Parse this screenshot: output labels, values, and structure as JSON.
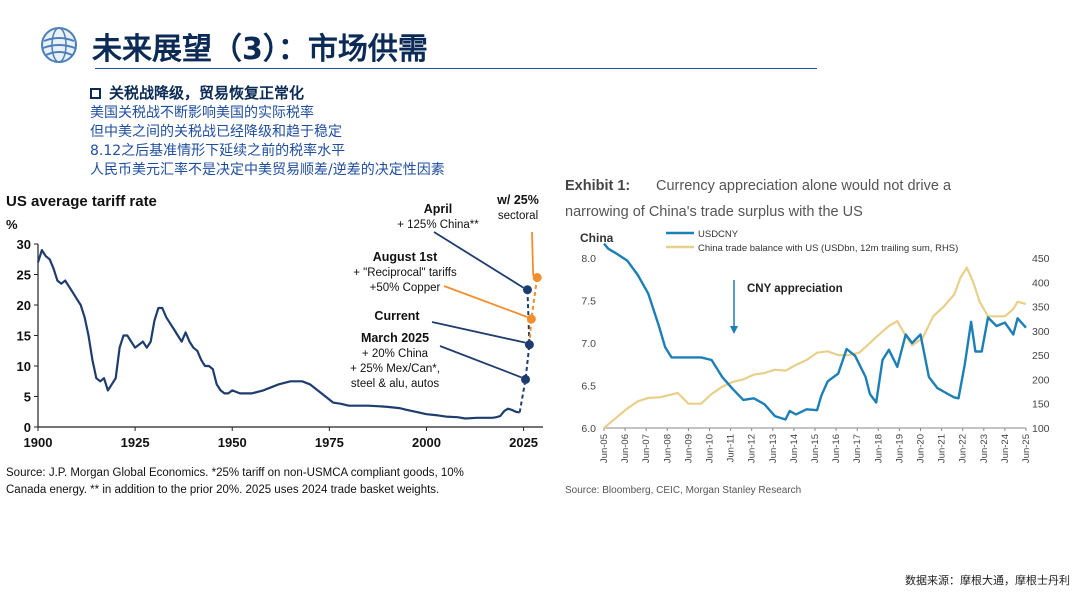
{
  "header": {
    "title": "未来展望（3）：市场供需",
    "bullet_heading": "关税战降级，贸易恢复正常化",
    "bullet_lines": [
      "美国关税战不断影响美国的实际税率",
      "但中美之间的关税战已经降级和趋于稳定",
      "8.12之后基准情形下延续之前的税率水平",
      "人民币美元汇率不是决定中美贸易顺差/逆差的决定性因素"
    ]
  },
  "footer": {
    "source": "数据来源：摩根大通，摩根士丹利"
  },
  "colors": {
    "navy": "#1e3d6e",
    "orange": "#f28e2b",
    "teal": "#1c7fb6",
    "tan": "#e8cf8a",
    "title": "#0b2a55"
  },
  "chart_data": [
    {
      "type": "line",
      "title": "US average tariff rate",
      "ylabel": "%",
      "xlim": [
        1900,
        2030
      ],
      "ylim": [
        0,
        30
      ],
      "x_ticks": [
        "1900",
        "1925",
        "1950",
        "1975",
        "2000",
        "2025"
      ],
      "y_ticks": [
        "0",
        "5",
        "10",
        "15",
        "20",
        "25",
        "30"
      ],
      "series": [
        {
          "color": "#1e3d6e",
          "x": [
            1900,
            1901,
            1902,
            1903,
            1904,
            1905,
            1906,
            1907,
            1908,
            1909,
            1910,
            1911,
            1912,
            1913,
            1914,
            1915,
            1916,
            1917,
            1918,
            1919,
            1920,
            1921,
            1922,
            1923,
            1924,
            1925,
            1926,
            1927,
            1928,
            1929,
            1930,
            1931,
            1932,
            1933,
            1934,
            1935,
            1936,
            1937,
            1938,
            1939,
            1940,
            1941,
            1942,
            1943,
            1944,
            1945,
            1946,
            1947,
            1948,
            1949,
            1950,
            1952,
            1955,
            1958,
            1960,
            1962,
            1965,
            1968,
            1970,
            1972,
            1974,
            1976,
            1978,
            1980,
            1982,
            1985,
            1988,
            1990,
            1993,
            1995,
            1998,
            2000,
            2003,
            2005,
            2008,
            2010,
            2013,
            2015,
            2017,
            2018,
            2019,
            2020,
            2021,
            2022,
            2023,
            2024
          ],
          "y": [
            27,
            29,
            28,
            27.5,
            26,
            24,
            23.5,
            24,
            23,
            22,
            21,
            20,
            18,
            15,
            11,
            8,
            7.5,
            8,
            6,
            7,
            8,
            13,
            15,
            15,
            14,
            13,
            13.5,
            14,
            13,
            14,
            17.5,
            19.5,
            19.5,
            18,
            17,
            16,
            15,
            14,
            15.5,
            14,
            13,
            12.5,
            11,
            10,
            10,
            9.5,
            7,
            6,
            5.5,
            5.5,
            6,
            5.5,
            5.5,
            6,
            6.5,
            7,
            7.5,
            7.5,
            7,
            6,
            5,
            4,
            3.8,
            3.5,
            3.5,
            3.5,
            3.4,
            3.3,
            3.1,
            2.8,
            2.4,
            2.1,
            1.9,
            1.7,
            1.6,
            1.4,
            1.5,
            1.5,
            1.5,
            1.6,
            1.8,
            2.6,
            3,
            2.8,
            2.5,
            2.4
          ]
        }
      ],
      "projections": [
        {
          "name": "March 2025",
          "lines": [
            "March 2025",
            "+ 20% China",
            "+ 25% Mex/Can*,",
            "steel & alu, autos"
          ],
          "x": 2025.5,
          "y": 7.8,
          "color": "#1e3d6e"
        },
        {
          "name": "Current",
          "lines": [
            "Current"
          ],
          "x": 2026.5,
          "y": 13.5,
          "color": "#1e3d6e"
        },
        {
          "name": "August 1st",
          "lines": [
            "August 1st",
            "+ \"Reciprocal\" tariffs",
            "+50% Copper"
          ],
          "x": 2027,
          "y": 17.7,
          "color": "#f28e2b"
        },
        {
          "name": "April",
          "lines": [
            "April",
            "+ 125% China**"
          ],
          "x": 2026,
          "y": 22.5,
          "color": "#1e3d6e"
        },
        {
          "name": "w/ 25% sectoral",
          "lines": [
            "w/ 25%",
            "sectoral"
          ],
          "x": 2028.5,
          "y": 24.5,
          "color": "#f28e2b"
        }
      ],
      "footnote": [
        "Source: J.P. Morgan Global Economics. *25% tariff on non-USMCA compliant goods, 10%",
        "Canada energy. ** in addition to the prior 20%. 2025 uses 2024 trade basket weights."
      ]
    },
    {
      "type": "line",
      "exhibit": "Exhibit 1:",
      "title_lines": [
        "Currency appreciation alone would not drive a",
        "narrowing of China's trade surplus with the US"
      ],
      "panel_label": "China",
      "annotation": "CNY appreciation",
      "ylim_left": [
        6.0,
        8.0
      ],
      "ylim_right": [
        100,
        450
      ],
      "y_ticks_left": [
        "6.0",
        "6.5",
        "7.0",
        "7.5",
        "8.0"
      ],
      "y_ticks_right": [
        "100",
        "150",
        "200",
        "250",
        "300",
        "350",
        "400",
        "450"
      ],
      "x_ticks": [
        "Jun-05",
        "Jun-06",
        "Jun-07",
        "Jun-08",
        "Jun-09",
        "Jun-10",
        "Jun-11",
        "Jun-12",
        "Jun-13",
        "Jun-14",
        "Jun-15",
        "Jun-16",
        "Jun-17",
        "Jun-18",
        "Jun-19",
        "Jun-20",
        "Jun-21",
        "Jun-22",
        "Jun-23",
        "Jun-24",
        "Jun-25"
      ],
      "series": [
        {
          "name": "USDCNY",
          "axis": "left",
          "color": "#1c7fb6",
          "x": [
            2005.4,
            2005.6,
            2006.0,
            2006.5,
            2007.0,
            2007.5,
            2008.0,
            2008.3,
            2008.6,
            2009.0,
            2009.5,
            2010.0,
            2010.5,
            2011.0,
            2011.5,
            2012.0,
            2012.5,
            2013.0,
            2013.5,
            2014.0,
            2014.2,
            2014.5,
            2015.0,
            2015.5,
            2015.7,
            2016.0,
            2016.5,
            2016.9,
            2017.3,
            2017.8,
            2018.0,
            2018.3,
            2018.6,
            2018.9,
            2019.3,
            2019.7,
            2020.0,
            2020.4,
            2020.8,
            2021.2,
            2021.7,
            2022.0,
            2022.2,
            2022.5,
            2022.8,
            2023.0,
            2023.3,
            2023.6,
            2024.0,
            2024.4,
            2024.8,
            2025.0,
            2025.4
          ],
          "y": [
            8.17,
            8.11,
            8.05,
            7.97,
            7.8,
            7.58,
            7.2,
            6.95,
            6.83,
            6.83,
            6.83,
            6.83,
            6.8,
            6.6,
            6.46,
            6.33,
            6.35,
            6.28,
            6.14,
            6.1,
            6.2,
            6.16,
            6.22,
            6.21,
            6.38,
            6.55,
            6.64,
            6.93,
            6.85,
            6.6,
            6.4,
            6.3,
            6.8,
            6.92,
            6.72,
            7.1,
            7.0,
            7.1,
            6.6,
            6.47,
            6.4,
            6.36,
            6.35,
            6.75,
            7.25,
            6.9,
            6.9,
            7.3,
            7.2,
            7.24,
            7.1,
            7.29,
            7.18
          ]
        },
        {
          "name": "China trade balance with US (USDbn, 12m trailing sum, RHS)",
          "axis": "right",
          "color": "#e8cf8a",
          "x": [
            2005.4,
            2006.0,
            2006.5,
            2007.0,
            2007.5,
            2008.0,
            2008.5,
            2008.9,
            2009.4,
            2010.0,
            2010.5,
            2011.0,
            2011.5,
            2012.0,
            2012.5,
            2013.0,
            2013.5,
            2014.0,
            2014.5,
            2015.0,
            2015.5,
            2016.0,
            2016.5,
            2017.0,
            2017.5,
            2018.0,
            2018.5,
            2018.9,
            2019.3,
            2019.7,
            2020.0,
            2020.5,
            2021.0,
            2021.5,
            2022.0,
            2022.3,
            2022.6,
            2022.9,
            2023.2,
            2023.6,
            2024.0,
            2024.4,
            2024.8,
            2025.0,
            2025.4
          ],
          "y": [
            100,
            122,
            140,
            155,
            162,
            163,
            168,
            172,
            150,
            150,
            170,
            185,
            195,
            200,
            210,
            213,
            220,
            218,
            230,
            240,
            255,
            258,
            250,
            250,
            255,
            275,
            295,
            310,
            320,
            290,
            270,
            285,
            330,
            350,
            375,
            410,
            430,
            400,
            360,
            330,
            330,
            330,
            345,
            360,
            355
          ]
        }
      ],
      "source": "Source: Bloomberg, CEIC, Morgan Stanley Research"
    }
  ]
}
